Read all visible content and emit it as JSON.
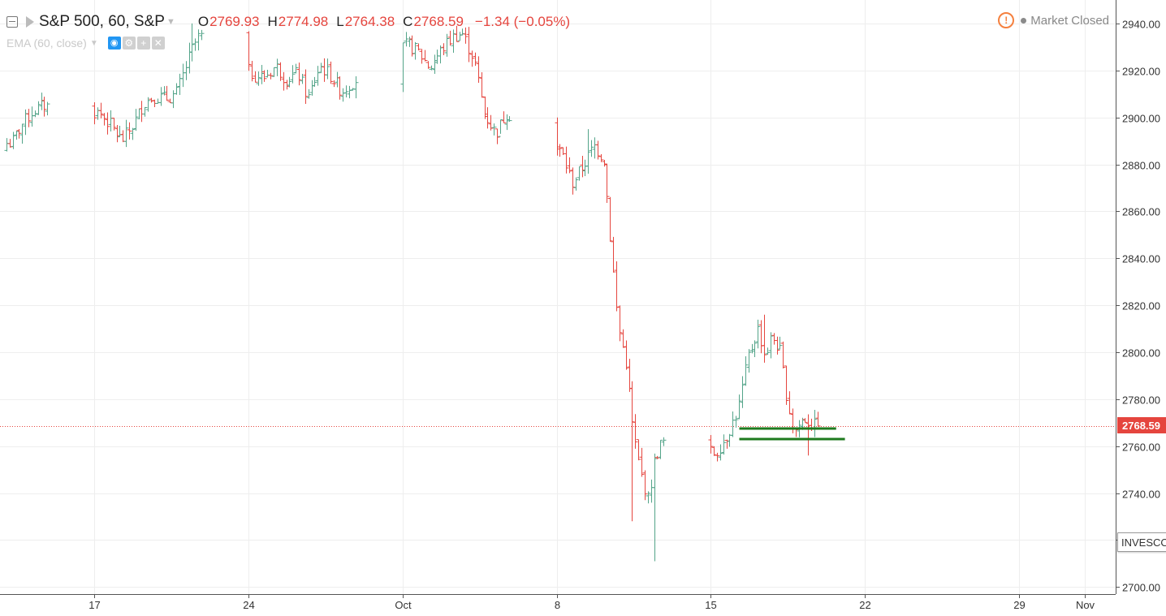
{
  "header": {
    "symbol": "S&P 500, 60, S&P",
    "open_label": "O",
    "open": "2769.93",
    "high_label": "H",
    "high": "2774.98",
    "low_label": "L",
    "low": "2764.38",
    "close_label": "C",
    "close": "2768.59",
    "change": "−1.34 (−0.05%)",
    "icons": {
      "collapse": "collapse-icon",
      "flag": "flag-icon",
      "caret": "caret-down-icon"
    }
  },
  "indicator": {
    "name": "EMA (60, close)",
    "icons": [
      "eye-icon",
      "settings-icon",
      "plus-icon",
      "close-icon"
    ]
  },
  "status": {
    "alert_icon": "!",
    "text": "Market Closed"
  },
  "price_tag": "2768.59",
  "symbol_tag": "INVESCO",
  "colors": {
    "up": "#53a489",
    "down": "#e5453e",
    "level_line": "#1e7a1e",
    "grid": "#eeeeee",
    "alert": "#f5803e"
  },
  "chart_data": {
    "type": "ohlc",
    "title": "S&P 500, 60, S&P",
    "x_axis": {
      "ticks": [
        "17",
        "24",
        "Oct",
        "8",
        "15",
        "22",
        "29",
        "Nov"
      ],
      "start_date": "2018-09-13",
      "end_date": "2018-11-01"
    },
    "y_axis": {
      "ticks": [
        2700,
        2720,
        2740,
        2760,
        2780,
        2800,
        2820,
        2840,
        2860,
        2880,
        2900,
        2920,
        2940
      ],
      "ylim": [
        2697,
        2950
      ],
      "tick_labels": [
        "2700.00",
        "2720.00",
        "2740.00",
        "2760.00",
        "2780.00",
        "2800.00",
        "2820.00",
        "2840.00",
        "2860.00",
        "2880.00",
        "2900.00",
        "2920.00",
        "2940.00"
      ]
    },
    "grid": true,
    "last_price": 2768.59,
    "horizontal_levels": [
      2767.5,
      2763
    ],
    "close_path": [
      [
        "2018-09-13",
        2889
      ],
      [
        "2018-09-13",
        2897
      ],
      [
        "2018-09-14",
        2903
      ],
      [
        "2018-09-14",
        2905
      ],
      [
        "2018-09-17",
        2902
      ],
      [
        "2018-09-17",
        2897
      ],
      [
        "2018-09-18",
        2890
      ],
      [
        "2018-09-18",
        2896
      ],
      [
        "2018-09-19",
        2906
      ],
      [
        "2018-09-19",
        2909
      ],
      [
        "2018-09-20",
        2908
      ],
      [
        "2018-09-20",
        2910
      ],
      [
        "2018-09-21",
        2922
      ],
      [
        "2018-09-21",
        2930
      ],
      [
        "2018-09-21",
        2935
      ],
      [
        "2018-09-24",
        2918
      ],
      [
        "2018-09-24",
        2917
      ],
      [
        "2018-09-25",
        2922
      ],
      [
        "2018-09-25",
        2916
      ],
      [
        "2018-09-26",
        2919
      ],
      [
        "2018-09-26",
        2908
      ],
      [
        "2018-09-27",
        2922
      ],
      [
        "2018-09-27",
        2918
      ],
      [
        "2018-09-28",
        2911
      ],
      [
        "2018-09-28",
        2915
      ],
      [
        "2018-10-01",
        2931
      ],
      [
        "2018-10-01",
        2928
      ],
      [
        "2018-10-02",
        2921
      ],
      [
        "2018-10-02",
        2928
      ],
      [
        "2018-10-03",
        2934
      ],
      [
        "2018-10-03",
        2936
      ],
      [
        "2018-10-04",
        2925
      ],
      [
        "2018-10-04",
        2902
      ],
      [
        "2018-10-05",
        2893
      ],
      [
        "2018-10-05",
        2902
      ],
      [
        "2018-10-08",
        2885
      ],
      [
        "2018-10-08",
        2872
      ],
      [
        "2018-10-09",
        2880
      ],
      [
        "2018-10-09",
        2888
      ],
      [
        "2018-10-10",
        2882
      ],
      [
        "2018-10-10",
        2845
      ],
      [
        "2018-10-10",
        2812
      ],
      [
        "2018-10-11",
        2795
      ],
      [
        "2018-10-11",
        2766
      ],
      [
        "2018-10-11",
        2750
      ],
      [
        "2018-10-12",
        2737
      ],
      [
        "2018-10-12",
        2755
      ],
      [
        "2018-10-12",
        2762
      ],
      [
        "2018-10-15",
        2757
      ],
      [
        "2018-10-15",
        2764
      ],
      [
        "2018-10-16",
        2775
      ],
      [
        "2018-10-16",
        2798
      ],
      [
        "2018-10-17",
        2810
      ],
      [
        "2018-10-17",
        2798
      ],
      [
        "2018-10-17",
        2807
      ],
      [
        "2018-10-18",
        2800
      ],
      [
        "2018-10-18",
        2780
      ],
      [
        "2018-10-18",
        2766
      ],
      [
        "2018-10-19",
        2772
      ],
      [
        "2018-10-19",
        2768.59
      ]
    ],
    "extremes": [
      [
        "2018-09-21",
        2940,
        "high"
      ],
      [
        "2018-10-03",
        2939,
        "high"
      ],
      [
        "2018-10-05",
        2893,
        "low"
      ],
      [
        "2018-10-09",
        2895,
        "high"
      ],
      [
        "2018-10-11",
        2728,
        "low"
      ],
      [
        "2018-10-12",
        2711,
        "low"
      ],
      [
        "2018-10-17",
        2816,
        "high"
      ],
      [
        "2018-10-19",
        2756,
        "low"
      ]
    ]
  }
}
